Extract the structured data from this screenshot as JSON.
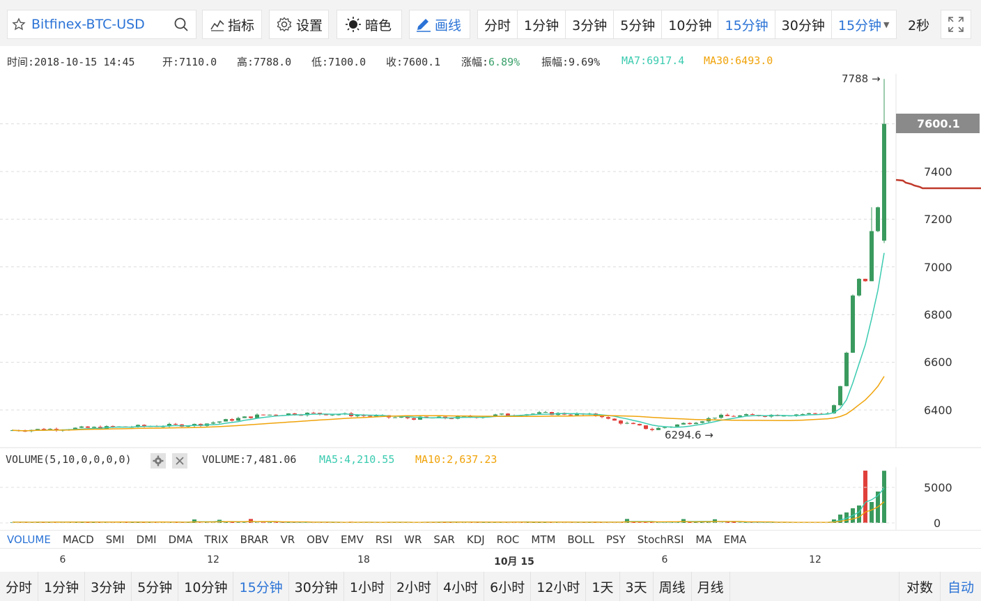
{
  "toolbar": {
    "symbol": "Bitfinex-BTC-USD",
    "indicators_label": "指标",
    "settings_label": "设置",
    "theme_label": "暗色",
    "draw_label": "画线",
    "periods": [
      "分时",
      "1分钟",
      "3分钟",
      "5分钟",
      "10分钟",
      "15分钟",
      "30分钟"
    ],
    "active_period": "15分钟",
    "period_dropdown": "15分钟",
    "refresh": "2秒"
  },
  "info": {
    "time": "时间:2018-10-15 14:45",
    "open": "开:7110.0",
    "high": "高:7788.0",
    "low": "低:7100.0",
    "close": "收:7600.1",
    "change_label": "涨幅:",
    "change": "6.89%",
    "amplitude": "振幅:9.69%",
    "ma7": "MA7:6917.4",
    "ma30": "MA30:6493.0"
  },
  "price_chart": {
    "y_ticks": [
      "7400",
      "7200",
      "7000",
      "6800",
      "6600",
      "6400"
    ],
    "last_price": "7600.1",
    "max_label": "7788 →",
    "min_label": "6294.6 →",
    "colors": {
      "up": "#3a9a5e",
      "down": "#e0403a",
      "ma7": "#3bcbb0",
      "ma30": "#f0a30a"
    }
  },
  "volume": {
    "legend": "VOLUME(5,10,0,0,0,0)",
    "value": "VOLUME:7,481.06",
    "ma5": "MA5:4,210.55",
    "ma10": "MA10:2,637.23",
    "y_ticks": [
      "5000",
      "0"
    ]
  },
  "indicator_tabs": [
    "VOLUME",
    "MACD",
    "SMI",
    "DMI",
    "DMA",
    "TRIX",
    "BRAR",
    "VR",
    "OBV",
    "EMV",
    "RSI",
    "WR",
    "SAR",
    "KDJ",
    "ROC",
    "MTM",
    "BOLL",
    "PSY",
    "StochRSI",
    "MA",
    "EMA"
  ],
  "active_indicator": "VOLUME",
  "time_axis": {
    "labels": [
      "6",
      "12",
      "18",
      "10月 15",
      "6",
      "12"
    ]
  },
  "bottom_periods": [
    "分时",
    "1分钟",
    "3分钟",
    "5分钟",
    "10分钟",
    "15分钟",
    "30分钟",
    "1小时",
    "2小时",
    "4小时",
    "6小时",
    "12小时",
    "1天",
    "3天",
    "周线",
    "月线"
  ],
  "active_bottom_period": "15分钟",
  "bottom_right": [
    "对数",
    "自动"
  ],
  "active_bottom_right": "自动"
}
